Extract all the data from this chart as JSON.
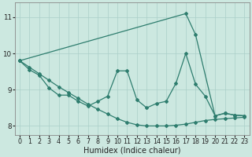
{
  "color": "#2e7d6e",
  "bg_color": "#cce8e0",
  "grid_color": "#aacfc8",
  "xlabel": "Humidex (Indice chaleur)",
  "ylim": [
    7.75,
    11.4
  ],
  "xlim": [
    -0.5,
    23.5
  ],
  "yticks": [
    8,
    9,
    10,
    11
  ],
  "xticks": [
    0,
    1,
    2,
    3,
    4,
    5,
    6,
    7,
    8,
    9,
    10,
    11,
    12,
    13,
    14,
    15,
    16,
    17,
    18,
    19,
    20,
    21,
    22,
    23
  ],
  "tick_fontsize": 5.8,
  "xlabel_fontsize": 7.0,
  "line1_x": [
    0,
    1,
    2,
    3,
    4,
    5,
    6,
    7,
    8,
    9,
    10,
    11,
    12,
    13,
    14,
    15,
    16,
    17,
    18,
    19,
    20,
    21,
    22,
    23
  ],
  "line1_y": [
    9.8,
    9.62,
    9.44,
    9.26,
    9.08,
    8.92,
    8.76,
    8.6,
    8.46,
    8.33,
    8.2,
    8.1,
    8.03,
    8.0,
    8.0,
    8.0,
    8.02,
    8.05,
    8.1,
    8.15,
    8.18,
    8.2,
    8.22,
    8.24
  ],
  "line2_x": [
    0,
    1,
    2,
    3,
    4,
    5,
    6,
    7,
    8,
    9,
    10,
    11,
    12,
    13,
    14,
    15,
    16,
    17,
    18,
    19,
    20,
    21,
    22,
    23
  ],
  "line2_y": [
    9.8,
    9.55,
    9.4,
    9.05,
    8.85,
    8.85,
    8.68,
    8.55,
    8.68,
    8.82,
    9.52,
    9.52,
    8.72,
    8.5,
    8.62,
    8.68,
    9.18,
    10.0,
    9.15,
    8.82,
    8.28,
    8.35,
    8.3,
    8.28
  ],
  "line3_x": [
    0,
    17,
    18,
    20,
    21,
    22,
    23
  ],
  "line3_y": [
    9.8,
    11.1,
    10.52,
    8.28,
    8.35,
    8.3,
    8.28
  ]
}
